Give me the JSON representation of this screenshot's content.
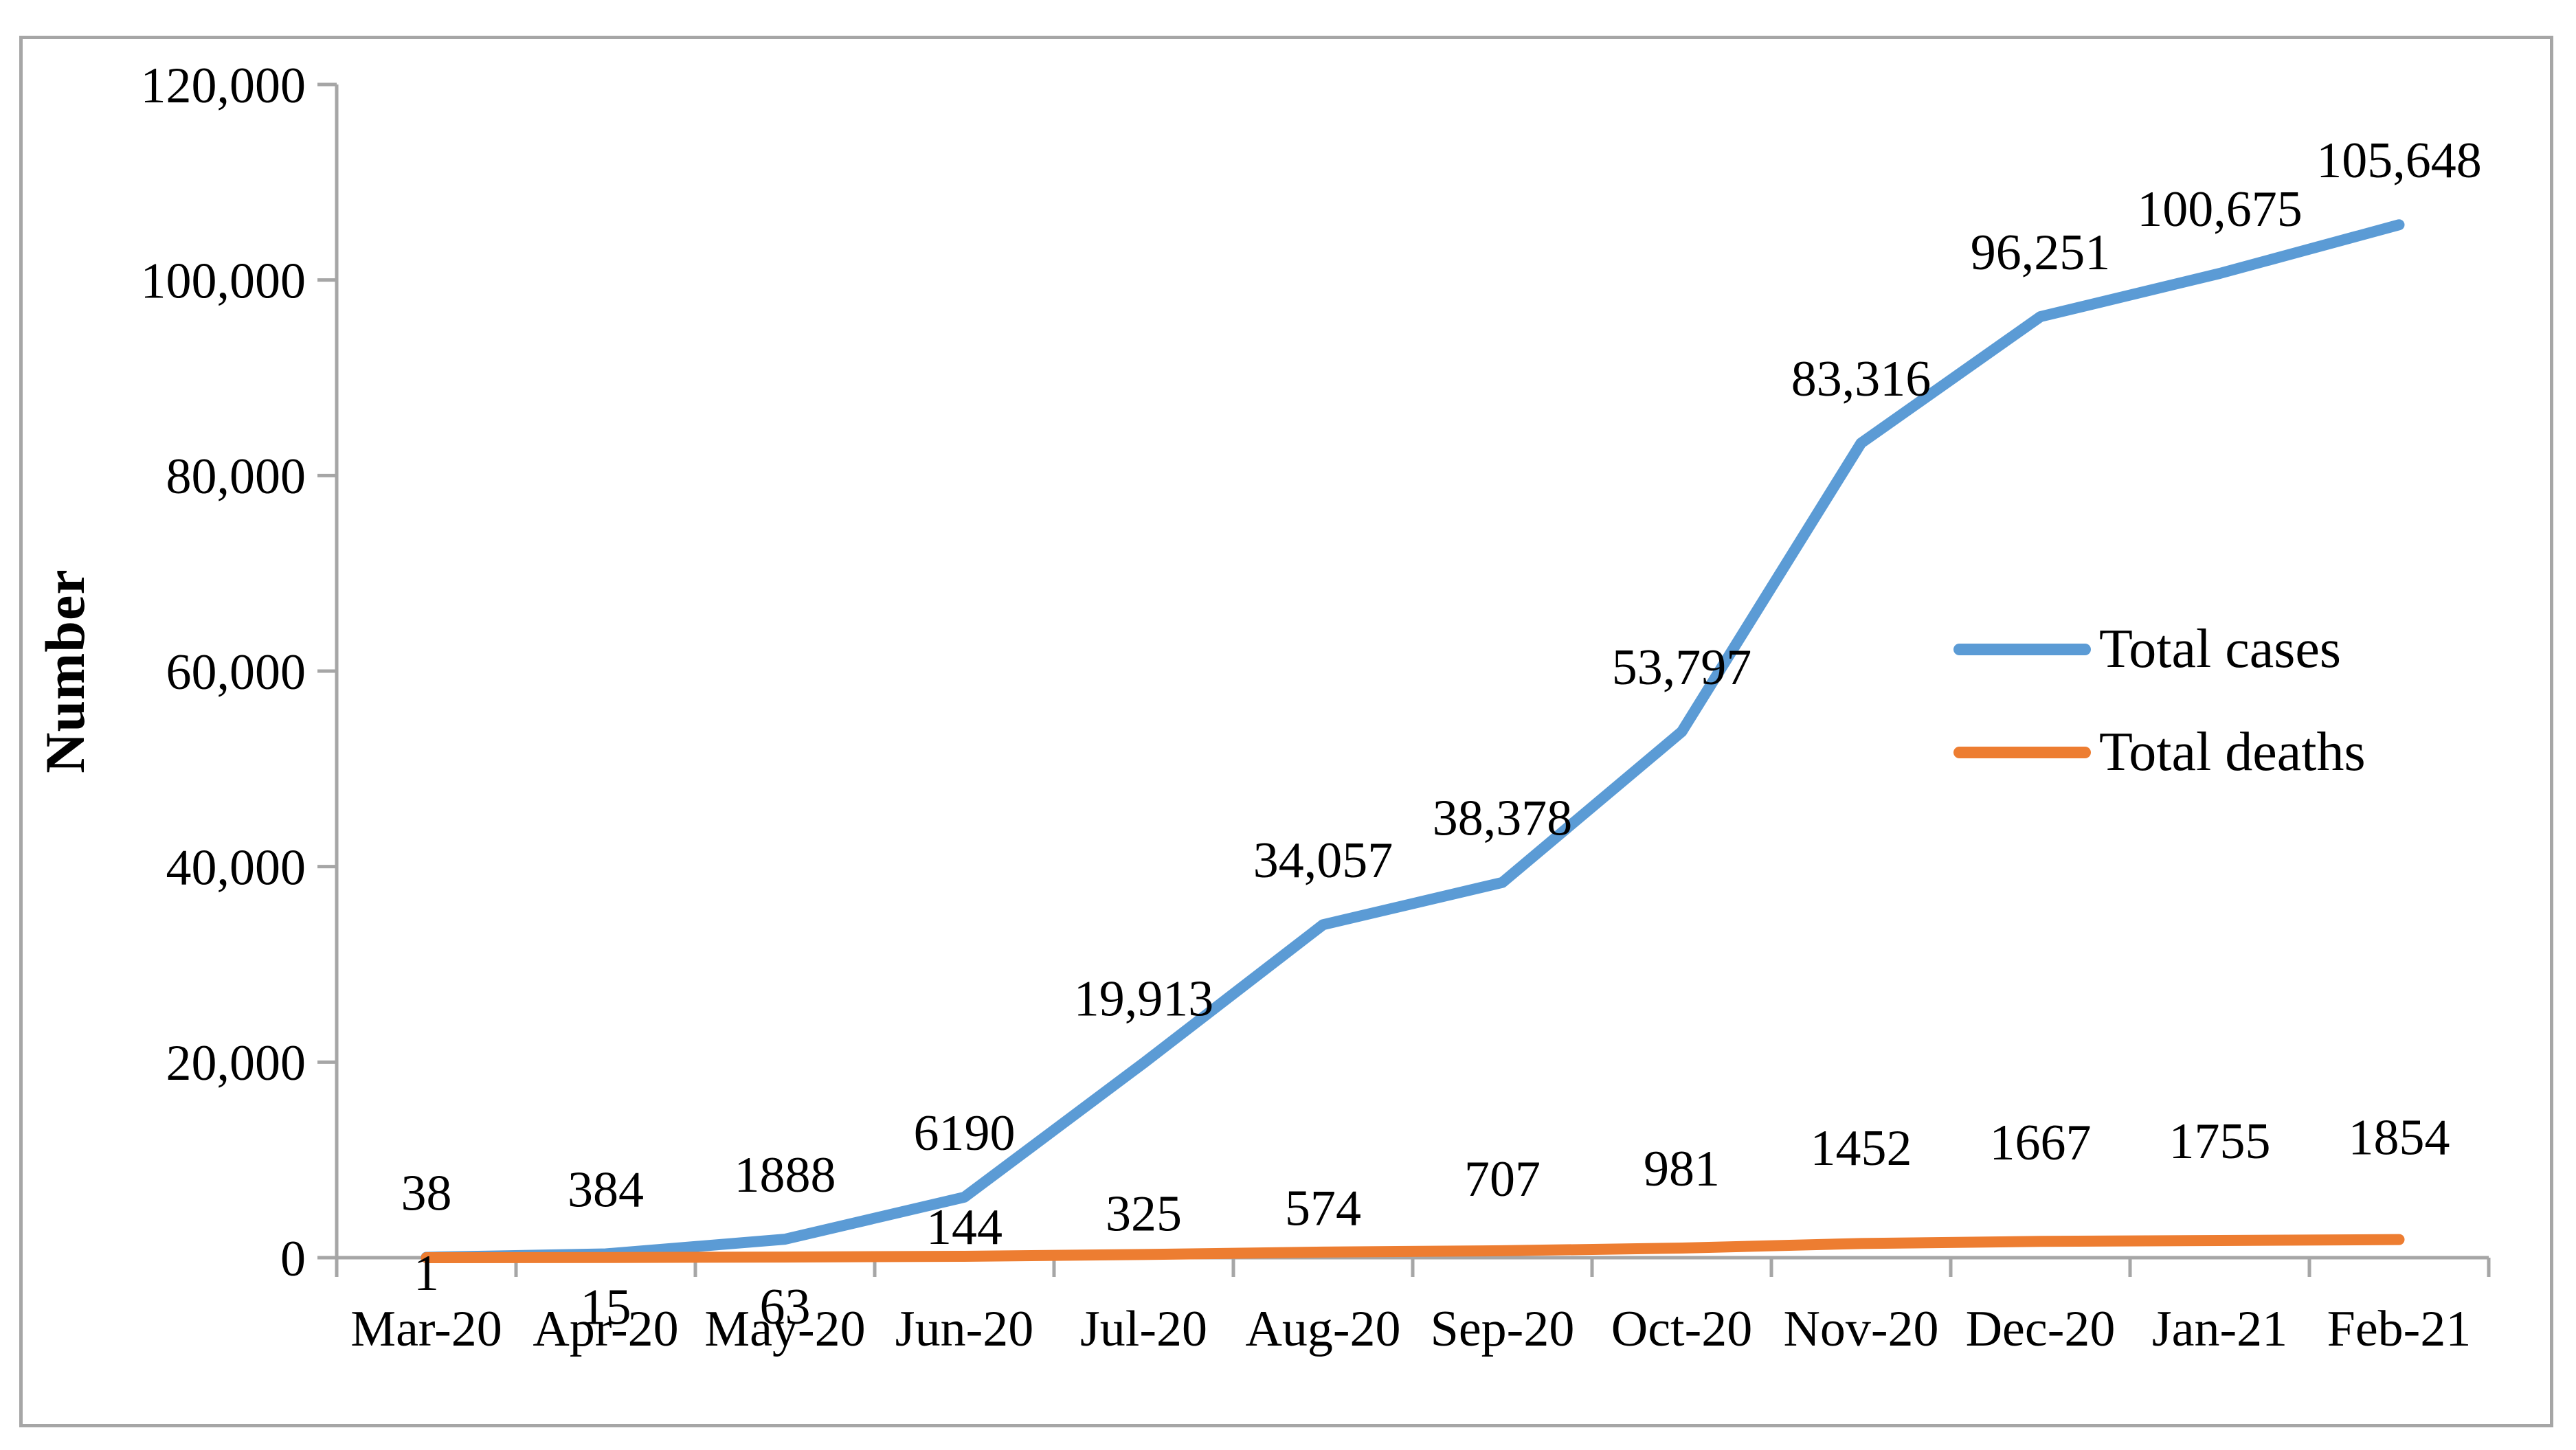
{
  "figure_title": "",
  "chart_data": {
    "type": "line",
    "title": "",
    "xlabel": "",
    "ylabel": "Number",
    "categories": [
      "Mar-20",
      "Apr-20",
      "May-20",
      "Jun-20",
      "Jul-20",
      "Aug-20",
      "Sep-20",
      "Oct-20",
      "Nov-20",
      "Dec-20",
      "Jan-21",
      "Feb-21"
    ],
    "series": [
      {
        "name": "Total cases",
        "color": "#5B9BD5",
        "values": [
          38,
          384,
          1888,
          6190,
          19913,
          34057,
          38378,
          53797,
          83316,
          96251,
          100675,
          105648
        ],
        "labels": [
          "38",
          "384",
          "1888",
          "6190",
          "19,913",
          "34,057",
          "38,378",
          "53,797",
          "83,316",
          "96,251",
          "100,675",
          "105,648"
        ]
      },
      {
        "name": "Total deaths",
        "color": "#ED7D31",
        "values": [
          1,
          15,
          63,
          144,
          325,
          574,
          707,
          981,
          1452,
          1667,
          1755,
          1854
        ],
        "labels": [
          "1",
          "15",
          "63",
          "144",
          "325",
          "574",
          "707",
          "981",
          "1452",
          "1667",
          "1755",
          "1854"
        ]
      }
    ],
    "ylim": [
      0,
      120000
    ],
    "y_tick_step": 20000,
    "y_tick_labels": [
      "0",
      "20,000",
      "40,000",
      "60,000",
      "80,000",
      "100,000",
      "120,000"
    ],
    "grid": false,
    "legend_position": "middle-right",
    "axis_color": "#A6A6A6",
    "label_color": "#000000"
  }
}
